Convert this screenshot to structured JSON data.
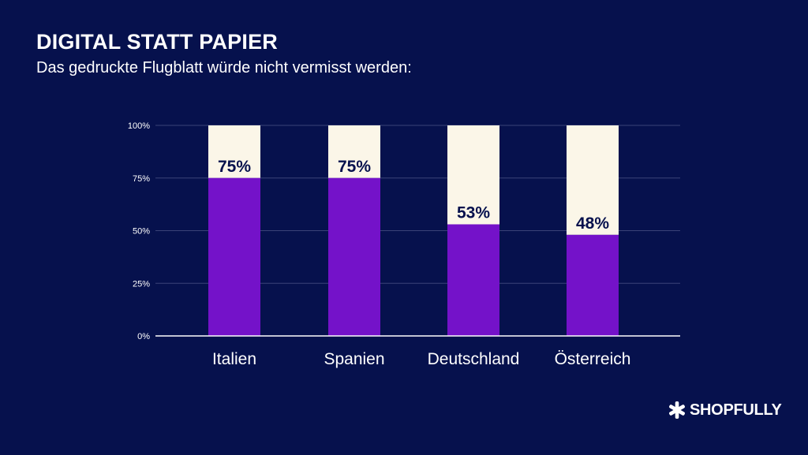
{
  "title": "DIGITAL STATT PAPIER",
  "subtitle": "Das gedruckte Flugblatt würde nicht vermisst werden:",
  "logo": {
    "text": "SHOPFULLY",
    "icon": "star-burst-icon"
  },
  "colors": {
    "background": "#06114d",
    "bar_fill": "#7412c9",
    "bar_remainder": "#fbf6e8",
    "value_label": "#06114d",
    "gridline": "#3a4278",
    "axis": "#ffffff"
  },
  "chart_data": {
    "type": "bar",
    "stacked_to_100": true,
    "categories": [
      "Italien",
      "Spanien",
      "Deutschland",
      "Österreich"
    ],
    "values": [
      75,
      75,
      53,
      48
    ],
    "value_labels": [
      "75%",
      "75%",
      "53%",
      "48%"
    ],
    "title": "DIGITAL STATT PAPIER",
    "subtitle": "Das gedruckte Flugblatt würde nicht vermisst werden:",
    "xlabel": "",
    "ylabel": "",
    "ylim": [
      0,
      100
    ],
    "yticks": [
      0,
      25,
      50,
      75,
      100
    ],
    "ytick_labels": [
      "0%",
      "25%",
      "50%",
      "75%",
      "100%"
    ],
    "grid": true,
    "legend": "none"
  }
}
